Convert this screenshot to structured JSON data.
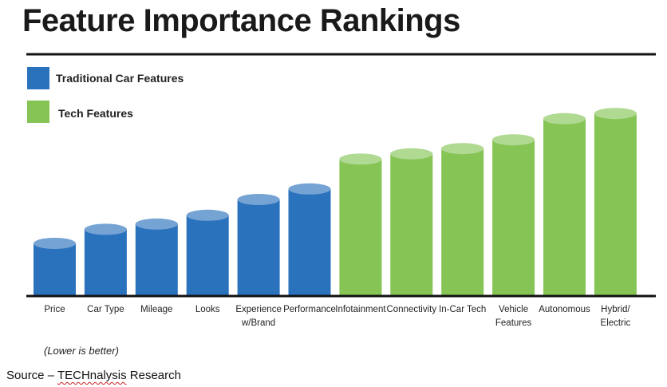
{
  "header": {
    "title": "Feature Importance Rankings"
  },
  "legend": {
    "items": [
      {
        "label": "Traditional Car Features",
        "color": "#2b72bd"
      },
      {
        "label": "Tech Features",
        "color": "#85c455"
      }
    ]
  },
  "footer": {
    "note": "(Lower is better)",
    "source_prefix": "Source – ",
    "source_brand": "TECHnalysis",
    "source_suffix": " Research"
  },
  "chart_data": {
    "type": "bar",
    "title": "Feature Importance Rankings",
    "categories": [
      [
        "Price"
      ],
      [
        "Car Type"
      ],
      [
        "Mileage"
      ],
      [
        "Looks"
      ],
      [
        "Experience",
        "w/Brand"
      ],
      [
        "Performance"
      ],
      [
        "Infotainment"
      ],
      [
        "Connectivity"
      ],
      [
        "In-Car Tech"
      ],
      [
        "Vehicle",
        "Features"
      ],
      [
        "Autonomous"
      ],
      [
        "Hybrid/",
        "Electric"
      ]
    ],
    "series": [
      {
        "name": "Traditional Car Features",
        "color": "#2b72bd",
        "values": [
          3.0,
          3.8,
          4.1,
          4.6,
          5.5,
          6.1,
          null,
          null,
          null,
          null,
          null,
          null
        ]
      },
      {
        "name": "Tech Features",
        "color": "#85c455",
        "values": [
          null,
          null,
          null,
          null,
          null,
          null,
          7.8,
          8.1,
          8.4,
          8.9,
          10.1,
          10.4
        ]
      }
    ],
    "ylim": [
      0,
      11
    ],
    "grid": false,
    "legend_position": "top-left",
    "bar_style": "cylinder"
  }
}
